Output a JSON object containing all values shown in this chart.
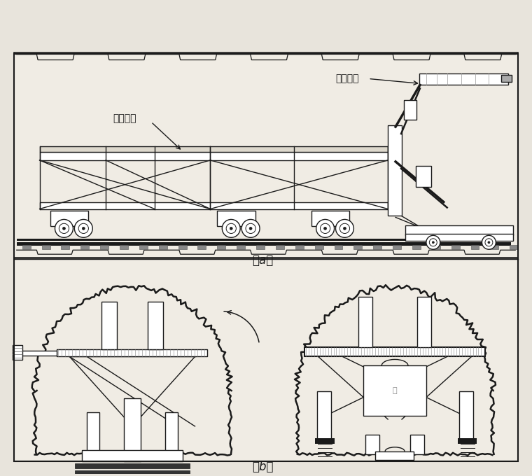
{
  "bg_color": "#e8e4dc",
  "panel_color": "#f0ece4",
  "line_color": "#1a1a1a",
  "line_color2": "#555555",
  "label_yizhi": "液压支臂",
  "label_gongzuo": "工作平台",
  "label_a": "（a）",
  "label_b": "（b）",
  "label_fontsize": 10,
  "caption_fontsize": 12
}
